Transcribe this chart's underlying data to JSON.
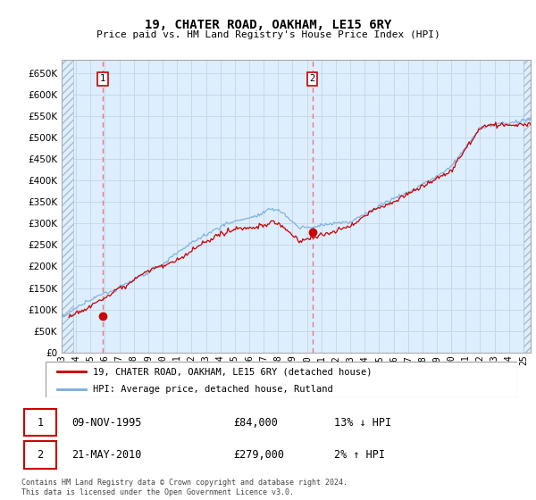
{
  "title": "19, CHATER ROAD, OAKHAM, LE15 6RY",
  "subtitle": "Price paid vs. HM Land Registry's House Price Index (HPI)",
  "legend_line1": "19, CHATER ROAD, OAKHAM, LE15 6RY (detached house)",
  "legend_line2": "HPI: Average price, detached house, Rutland",
  "sale1_label": "1",
  "sale1_date": "09-NOV-1995",
  "sale1_price": "£84,000",
  "sale1_hpi": "13% ↓ HPI",
  "sale2_label": "2",
  "sale2_date": "21-MAY-2010",
  "sale2_price": "£279,000",
  "sale2_hpi": "2% ↑ HPI",
  "sale1_x": 1995.86,
  "sale1_y": 84000,
  "sale2_x": 2010.38,
  "sale2_y": 279000,
  "hpi_color": "#7aaddc",
  "price_color": "#cc0000",
  "vline_color": "#e87878",
  "marker_color": "#cc0000",
  "grid_color": "#c8d8e8",
  "bg_color": "#ddeeff",
  "footer": "Contains HM Land Registry data © Crown copyright and database right 2024.\nThis data is licensed under the Open Government Licence v3.0.",
  "ylim": [
    0,
    680000
  ],
  "xlim_start": 1993.0,
  "xlim_end": 2025.5,
  "yticks": [
    0,
    50000,
    100000,
    150000,
    200000,
    250000,
    300000,
    350000,
    400000,
    450000,
    500000,
    550000,
    600000,
    650000
  ],
  "xtick_years": [
    1993,
    1994,
    1995,
    1996,
    1997,
    1998,
    1999,
    2000,
    2001,
    2002,
    2003,
    2004,
    2005,
    2006,
    2007,
    2008,
    2009,
    2010,
    2011,
    2012,
    2013,
    2014,
    2015,
    2016,
    2017,
    2018,
    2019,
    2020,
    2021,
    2022,
    2023,
    2024,
    2025
  ]
}
